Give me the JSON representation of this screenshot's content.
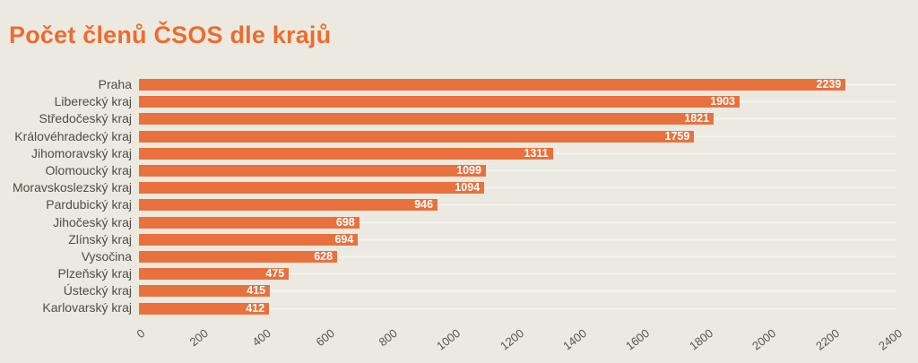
{
  "page": {
    "background_color": "#ECEAE0"
  },
  "chart_data": {
    "type": "bar",
    "orientation": "horizontal",
    "title": "Počet členů ČSOS dle krajů",
    "title_color": "#EC6C2F",
    "bar_color": "#E8713E",
    "value_label_color": "#FFFFFF",
    "category_label_color": "#4C4C4A",
    "tick_label_color": "#54554F",
    "categories": [
      "Praha",
      "Liberecký kraj",
      "Středočeský kraj",
      "Královéhradecký kraj",
      "Jihomoravský kraj",
      "Olomoucký kraj",
      "Moravskoslezský kraj",
      "Pardubický kraj",
      "Jihočeský kraj",
      "Zlínský kraj",
      "Vysočina",
      "Plzeňský kraj",
      "Ústecký kraj",
      "Karlovarský kraj"
    ],
    "values": [
      2239,
      1903,
      1821,
      1759,
      1311,
      1099,
      1094,
      946,
      698,
      694,
      628,
      475,
      415,
      412
    ],
    "xlabel": "",
    "ylabel": "",
    "xlim": [
      0,
      2400
    ],
    "xticks": [
      0,
      200,
      400,
      600,
      800,
      1000,
      1200,
      1400,
      1600,
      1800,
      2000,
      2200,
      2400
    ],
    "xtick_rotation_deg": 38,
    "grid": "faint white horizontal lines per category row",
    "legend": "none",
    "value_labels_position": "inside-end"
  }
}
